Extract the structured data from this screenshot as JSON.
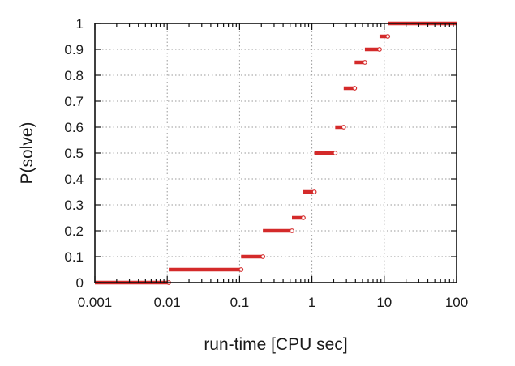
{
  "chart_data": {
    "type": "line",
    "title": "",
    "xlabel": "run-time [CPU sec]",
    "ylabel": "P(solve)",
    "xscale": "log",
    "xlim": [
      0.001,
      100
    ],
    "ylim": [
      0,
      1
    ],
    "x_ticks": [
      0.001,
      0.01,
      0.1,
      1,
      10,
      100
    ],
    "x_tick_labels": [
      "0.001",
      "0.01",
      "0.1",
      "1",
      "10",
      "100"
    ],
    "y_ticks": [
      0,
      0.1,
      0.2,
      0.3,
      0.4,
      0.5,
      0.6,
      0.7,
      0.8,
      0.9,
      1
    ],
    "y_tick_labels": [
      "0",
      "0.1",
      "0.2",
      "0.3",
      "0.4",
      "0.5",
      "0.6",
      "0.7",
      "0.8",
      "0.9",
      "1"
    ],
    "grid": true,
    "series": [
      {
        "color": "#d42a2a",
        "style": "step-cdf",
        "segments": [
          {
            "x_start": 0.001,
            "x_end": 0.0105,
            "y": 0.0
          },
          {
            "x_start": 0.0105,
            "x_end": 0.105,
            "y": 0.05
          },
          {
            "x_start": 0.105,
            "x_end": 0.21,
            "y": 0.1
          },
          {
            "x_start": 0.21,
            "x_end": 0.53,
            "y": 0.2
          },
          {
            "x_start": 0.53,
            "x_end": 0.76,
            "y": 0.25
          },
          {
            "x_start": 0.76,
            "x_end": 1.08,
            "y": 0.35
          },
          {
            "x_start": 1.08,
            "x_end": 2.1,
            "y": 0.5
          },
          {
            "x_start": 2.1,
            "x_end": 2.75,
            "y": 0.6
          },
          {
            "x_start": 2.75,
            "x_end": 3.9,
            "y": 0.75
          },
          {
            "x_start": 3.9,
            "x_end": 5.4,
            "y": 0.85
          },
          {
            "x_start": 5.4,
            "x_end": 8.6,
            "y": 0.9
          },
          {
            "x_start": 8.6,
            "x_end": 11.2,
            "y": 0.95
          },
          {
            "x_start": 11.2,
            "x_end": 100,
            "y": 1.0
          }
        ]
      }
    ]
  }
}
